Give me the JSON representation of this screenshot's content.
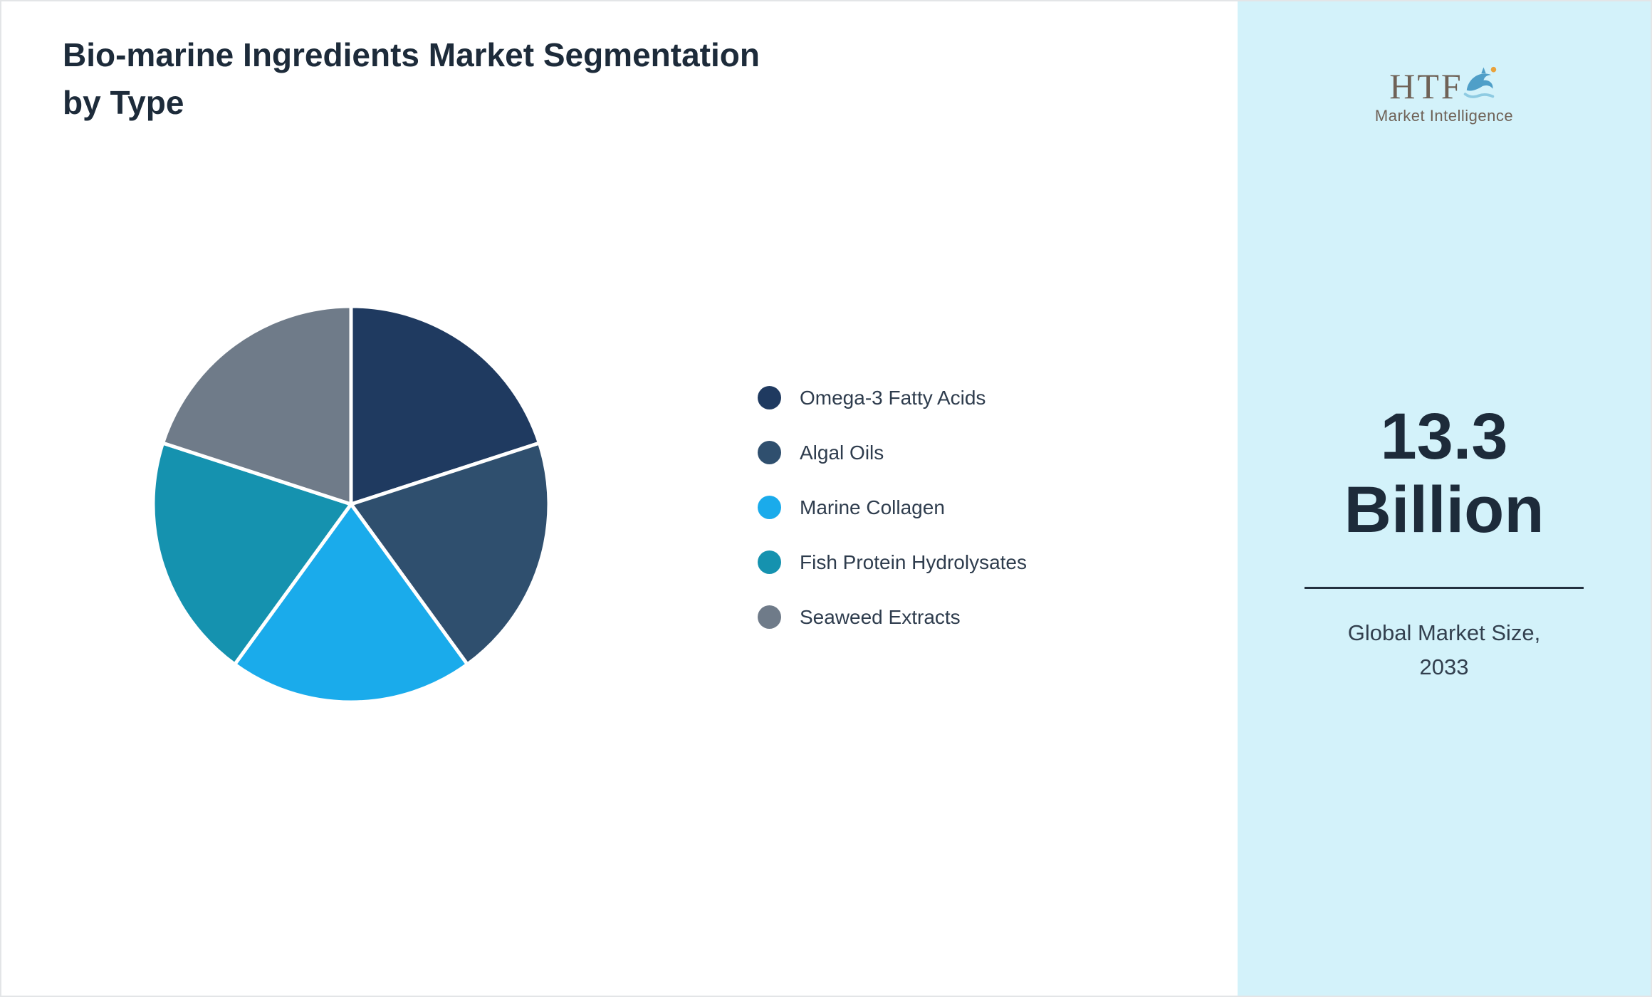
{
  "chart_data": {
    "type": "pie",
    "title": "Bio-marine Ingredients Market Segmentation by Type",
    "labels": [
      "Omega-3 Fatty Acids",
      "Algal Oils",
      "Marine Collagen",
      "Fish Protein Hydrolysates",
      "Seaweed Extracts"
    ],
    "values": [
      20,
      20,
      20,
      20,
      20
    ],
    "colors": [
      "#1f3a60",
      "#2f4f6e",
      "#1aabeb",
      "#1592af",
      "#6f7b89"
    ],
    "start_angle_deg": 0,
    "slice_border_color": "#ffffff",
    "legend_position": "right"
  },
  "sidebar": {
    "background": "#d3f2fa",
    "logo": {
      "brand": "HTF",
      "subtitle": "Market Intelligence",
      "dolphin_blue": "#4f9fc8",
      "splash_blue": "#8ecbe2",
      "accent_orange": "#e9a23b"
    },
    "stat_value_line1": "13.3",
    "stat_value_line2": "Billion",
    "stat_label_line1": "Global Market Size,",
    "stat_label_line2": "2033"
  }
}
